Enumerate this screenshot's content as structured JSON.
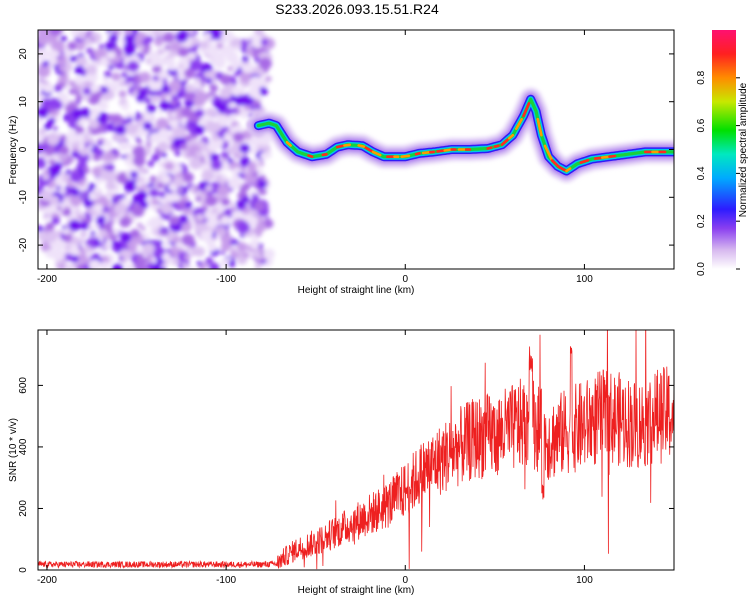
{
  "title": "S233.2026.093.15.51.R24",
  "chart_data": [
    {
      "type": "heatmap",
      "xlabel": "Height of straight line (km)",
      "ylabel": "Frequency (Hz)",
      "xlim": [
        -205,
        150
      ],
      "ylim": [
        -25,
        25
      ],
      "x_ticks": [
        -200,
        -100,
        0,
        100
      ],
      "y_ticks": [
        20,
        10,
        0,
        -10,
        -20
      ],
      "noise_region_x": [
        -205,
        -76
      ],
      "ridge": {
        "x": [
          -82,
          -76,
          -72,
          -66,
          -60,
          -52,
          -44,
          -38,
          -32,
          -24,
          -18,
          -12,
          -6,
          0,
          8,
          16,
          26,
          36,
          46,
          54,
          60,
          66,
          70,
          73,
          76,
          80,
          85,
          90,
          96,
          104,
          114,
          124,
          134,
          150
        ],
        "y": [
          5,
          5.5,
          5,
          1.5,
          -0.5,
          -1.5,
          -1,
          0.5,
          1,
          0.8,
          -0.5,
          -1.5,
          -1.5,
          -1.5,
          -0.8,
          -0.5,
          0,
          0,
          0.2,
          1,
          3,
          7,
          10.5,
          8,
          3,
          -1.5,
          -3.5,
          -4.5,
          -3,
          -2,
          -1.5,
          -1,
          -0.5,
          -0.5
        ]
      },
      "colorbar": {
        "label": "Normalized spectral amplitude",
        "range": [
          0,
          1
        ],
        "ticks": [
          "0.0",
          "0.2",
          "0.4",
          "0.6",
          "0.8"
        ]
      }
    },
    {
      "type": "line",
      "xlabel": "Height of straight line (km)",
      "ylabel": "SNR (10 * v/v)",
      "xlim": [
        -205,
        150
      ],
      "ylim": [
        0,
        780
      ],
      "x_ticks": [
        -200,
        -100,
        0,
        100
      ],
      "y_ticks": [
        0,
        200,
        400,
        600
      ],
      "series_color": "#ee2020",
      "trend": {
        "x": [
          -205,
          -80,
          -72,
          -68,
          -60,
          -50,
          -40,
          -30,
          -20,
          -10,
          0,
          10,
          20,
          30,
          40,
          50,
          60,
          70,
          80,
          90,
          100,
          110,
          120,
          130,
          140,
          150
        ],
        "y": [
          18,
          18,
          20,
          40,
          70,
          90,
          120,
          150,
          180,
          210,
          260,
          320,
          360,
          400,
          430,
          440,
          460,
          490,
          420,
          450,
          470,
          500,
          490,
          470,
          500,
          510
        ]
      }
    }
  ]
}
